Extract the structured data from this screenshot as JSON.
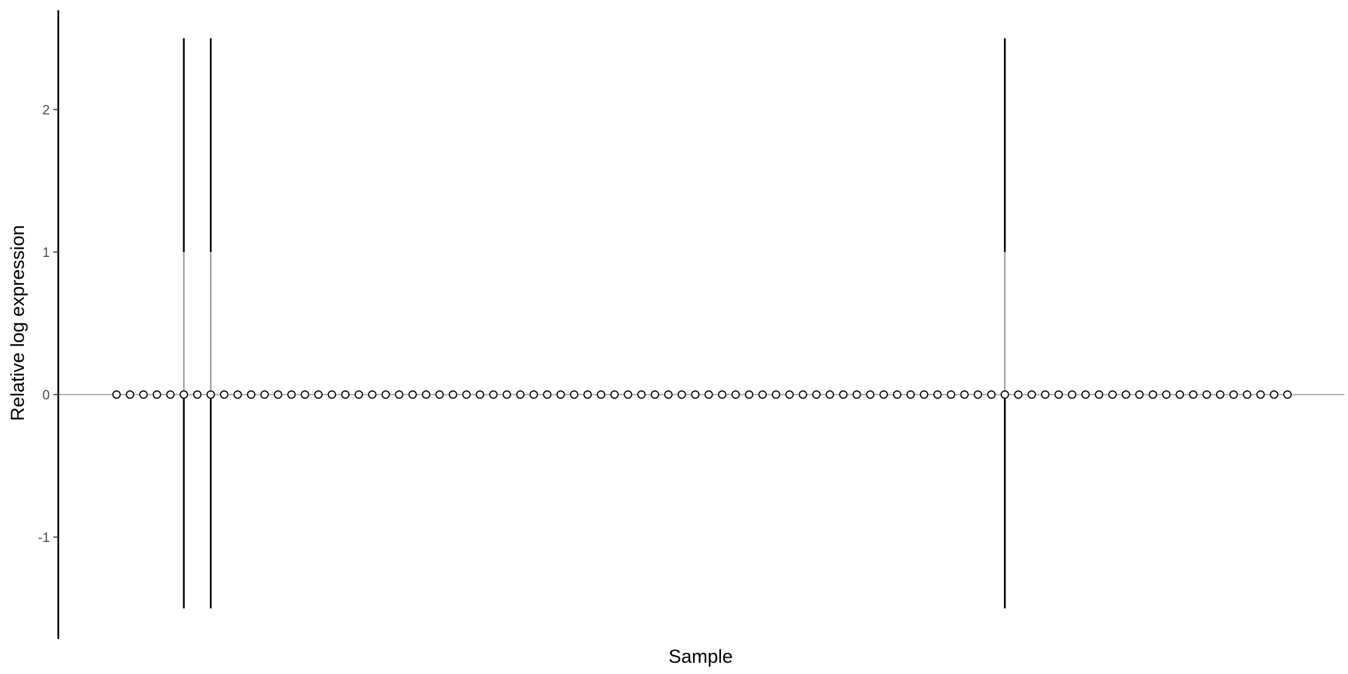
{
  "chart_data": {
    "type": "box",
    "title": "",
    "xlabel": "Sample",
    "ylabel": "Relative log expression",
    "ylim": [
      -1.7,
      2.5
    ],
    "yticks": [
      -1,
      0,
      1,
      2
    ],
    "ytick_labels": [
      "-1",
      "0",
      "1",
      "2"
    ],
    "x_tick_labels_shown": false,
    "n_samples": 88,
    "reference_line_y": 0,
    "samples": {
      "median": 0,
      "q1": 0,
      "q3": 0,
      "whisker_low": 0,
      "whisker_high": 0
    },
    "outlier_samples": [
      {
        "index": 5,
        "median": 0,
        "q1": 0,
        "q3": 1,
        "whisker_low": -1.5,
        "whisker_high": 2.5
      },
      {
        "index": 7,
        "median": 0,
        "q1": 0,
        "q3": 1,
        "whisker_low": -1.5,
        "whisker_high": 2.5
      },
      {
        "index": 66,
        "median": 0,
        "q1": 0,
        "q3": 1,
        "whisker_low": -1.5,
        "whisker_high": 2.5
      }
    ],
    "grid": false,
    "legend": "none",
    "colors": {
      "box_stroke": "#000000",
      "median_line": "#999999",
      "reference_line": "#b3b3b3",
      "point_fill": "#ffffff",
      "point_stroke": "#000000",
      "axis": "#000000"
    }
  }
}
